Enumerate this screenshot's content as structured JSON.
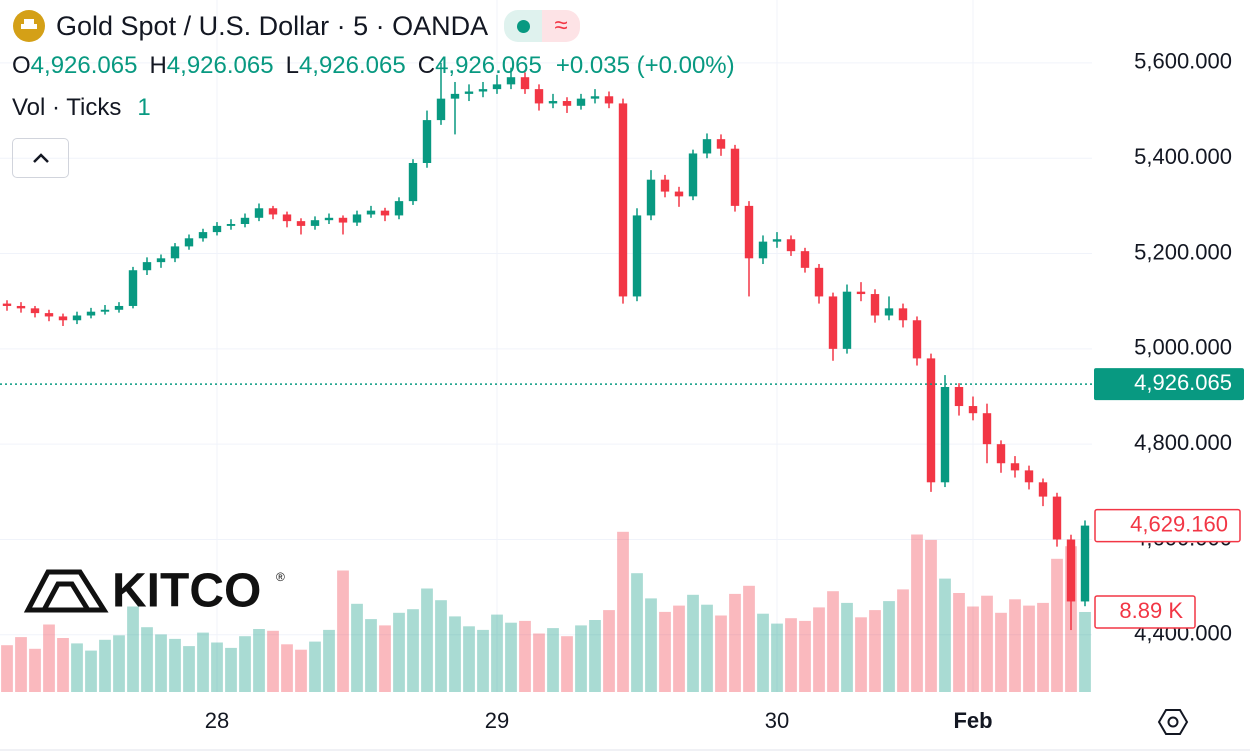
{
  "header": {
    "title": "Gold Spot / U.S. Dollar · 5 · OANDA",
    "ohlc": [
      {
        "key": "O",
        "value": "4,926.065"
      },
      {
        "key": "H",
        "value": "4,926.065"
      },
      {
        "key": "L",
        "value": "4,926.065"
      },
      {
        "key": "C",
        "value": "4,926.065"
      }
    ],
    "change": "+0.035 (+0.00%)",
    "volume_label": "Vol · Ticks",
    "volume_setting": "1"
  },
  "logo": {
    "name": "KITCO",
    "mark": "®"
  },
  "chart_data": {
    "type": "candlestick",
    "categories": [
      null,
      null,
      null,
      null,
      null,
      null,
      null,
      null,
      null,
      null,
      null,
      null,
      null,
      null,
      null,
      "28",
      null,
      null,
      null,
      null,
      null,
      null,
      null,
      null,
      null,
      null,
      null,
      null,
      null,
      null,
      null,
      null,
      null,
      null,
      null,
      "29",
      null,
      null,
      null,
      null,
      null,
      null,
      null,
      null,
      null,
      null,
      null,
      null,
      null,
      null,
      null,
      null,
      null,
      null,
      null,
      "30",
      null,
      null,
      null,
      null,
      null,
      null,
      null,
      null,
      null,
      null,
      null,
      null,
      null,
      "Feb",
      null,
      null,
      null,
      null,
      null,
      null,
      null,
      null
    ],
    "open": [
      5095,
      5090,
      5085,
      5075,
      5068,
      5060,
      5070,
      5078,
      5082,
      5090,
      5165,
      5182,
      5190,
      5215,
      5232,
      5245,
      5258,
      5262,
      5275,
      5295,
      5282,
      5268,
      5258,
      5270,
      5275,
      5265,
      5282,
      5290,
      5280,
      5310,
      5390,
      5480,
      5525,
      5535,
      5540,
      5545,
      5555,
      5570,
      5545,
      5515,
      5520,
      5510,
      5525,
      5530,
      5515,
      5110,
      5280,
      5355,
      5330,
      5320,
      5410,
      5440,
      5420,
      5300,
      5190,
      5225,
      5230,
      5205,
      5170,
      5110,
      5000,
      5120,
      5115,
      5070,
      5085,
      5060,
      4980,
      4720,
      4920,
      4880,
      4865,
      4800,
      4760,
      4745,
      4720,
      4690,
      4600,
      4470
    ],
    "high": [
      5102,
      5098,
      5090,
      5082,
      5074,
      5078,
      5086,
      5092,
      5098,
      5172,
      5192,
      5198,
      5222,
      5240,
      5252,
      5266,
      5272,
      5284,
      5305,
      5300,
      5288,
      5274,
      5278,
      5284,
      5280,
      5290,
      5300,
      5296,
      5318,
      5398,
      5500,
      5600,
      5560,
      5555,
      5560,
      5575,
      5590,
      5580,
      5555,
      5535,
      5528,
      5535,
      5545,
      5540,
      5525,
      5295,
      5375,
      5365,
      5340,
      5418,
      5452,
      5450,
      5428,
      5310,
      5238,
      5245,
      5238,
      5212,
      5178,
      5118,
      5135,
      5140,
      5125,
      5110,
      5095,
      5068,
      4990,
      4945,
      4928,
      4900,
      4885,
      4808,
      4775,
      4755,
      4728,
      4698,
      4610,
      4640
    ],
    "low": [
      5080,
      5076,
      5066,
      5058,
      5048,
      5052,
      5064,
      5072,
      5076,
      5085,
      5155,
      5170,
      5182,
      5208,
      5225,
      5238,
      5250,
      5255,
      5268,
      5272,
      5255,
      5240,
      5250,
      5262,
      5240,
      5258,
      5275,
      5268,
      5272,
      5302,
      5380,
      5470,
      5450,
      5520,
      5528,
      5535,
      5545,
      5535,
      5500,
      5505,
      5495,
      5502,
      5515,
      5505,
      5095,
      5100,
      5270,
      5318,
      5298,
      5312,
      5400,
      5405,
      5288,
      5110,
      5178,
      5212,
      5195,
      5160,
      5095,
      4975,
      4990,
      5100,
      5055,
      5060,
      5045,
      4965,
      4700,
      4710,
      4860,
      4850,
      4760,
      4740,
      4730,
      4705,
      4670,
      4585,
      4410,
      4460
    ],
    "close": [
      5090,
      5085,
      5075,
      5068,
      5060,
      5070,
      5078,
      5082,
      5090,
      5165,
      5182,
      5190,
      5215,
      5232,
      5245,
      5258,
      5262,
      5275,
      5295,
      5282,
      5268,
      5258,
      5270,
      5275,
      5265,
      5282,
      5290,
      5280,
      5310,
      5390,
      5480,
      5525,
      5535,
      5540,
      5545,
      5555,
      5570,
      5545,
      5515,
      5520,
      5510,
      5525,
      5530,
      5515,
      5110,
      5280,
      5355,
      5330,
      5320,
      5410,
      5440,
      5420,
      5300,
      5190,
      5225,
      5230,
      5205,
      5170,
      5110,
      5000,
      5120,
      5115,
      5070,
      5085,
      5060,
      4980,
      4720,
      4920,
      4880,
      4865,
      4800,
      4760,
      4745,
      4720,
      4690,
      4600,
      4470,
      4629.16
    ],
    "volume": [
      5.2,
      6.1,
      4.8,
      7.5,
      6.0,
      5.4,
      4.6,
      5.8,
      6.3,
      9.5,
      7.2,
      6.4,
      5.9,
      5.1,
      6.6,
      5.5,
      4.9,
      6.2,
      7.0,
      6.8,
      5.3,
      4.7,
      5.6,
      6.9,
      13.5,
      9.8,
      8.1,
      7.4,
      8.8,
      9.2,
      11.5,
      10.2,
      8.4,
      7.3,
      6.9,
      8.6,
      7.7,
      7.9,
      6.5,
      7.1,
      6.2,
      7.4,
      8.0,
      9.1,
      17.8,
      13.2,
      10.4,
      8.9,
      9.6,
      10.8,
      9.7,
      8.5,
      10.9,
      11.8,
      8.7,
      7.6,
      8.2,
      7.9,
      9.4,
      11.2,
      9.9,
      8.3,
      9.1,
      10.1,
      11.4,
      17.5,
      16.9,
      12.6,
      11.0,
      9.5,
      10.7,
      8.8,
      10.3,
      9.6,
      9.9,
      14.8,
      16.2,
      8.89
    ],
    "volume_last_label": {
      "value": 8.89,
      "label": "8.89 K"
    },
    "ylim": [
      4280,
      5732
    ],
    "volume_lim": [
      0,
      20
    ],
    "yticks": [
      {
        "value": 4400,
        "label": "4,400.000"
      },
      {
        "value": 4600,
        "label": "4,600.000"
      },
      {
        "value": 4800,
        "label": "4,800.000"
      },
      {
        "value": 5000,
        "label": "5,000.000"
      },
      {
        "value": 5200,
        "label": "5,200.000"
      },
      {
        "value": 5400,
        "label": "5,400.000"
      },
      {
        "value": 5600,
        "label": "5,600.000"
      }
    ],
    "price_line": {
      "value": 4926.065,
      "label": "4,926.065"
    },
    "last_price": {
      "value": 4629.16,
      "label": "4,629.160"
    },
    "up_color": "#089981",
    "down_color": "#f23645",
    "grid": true
  }
}
